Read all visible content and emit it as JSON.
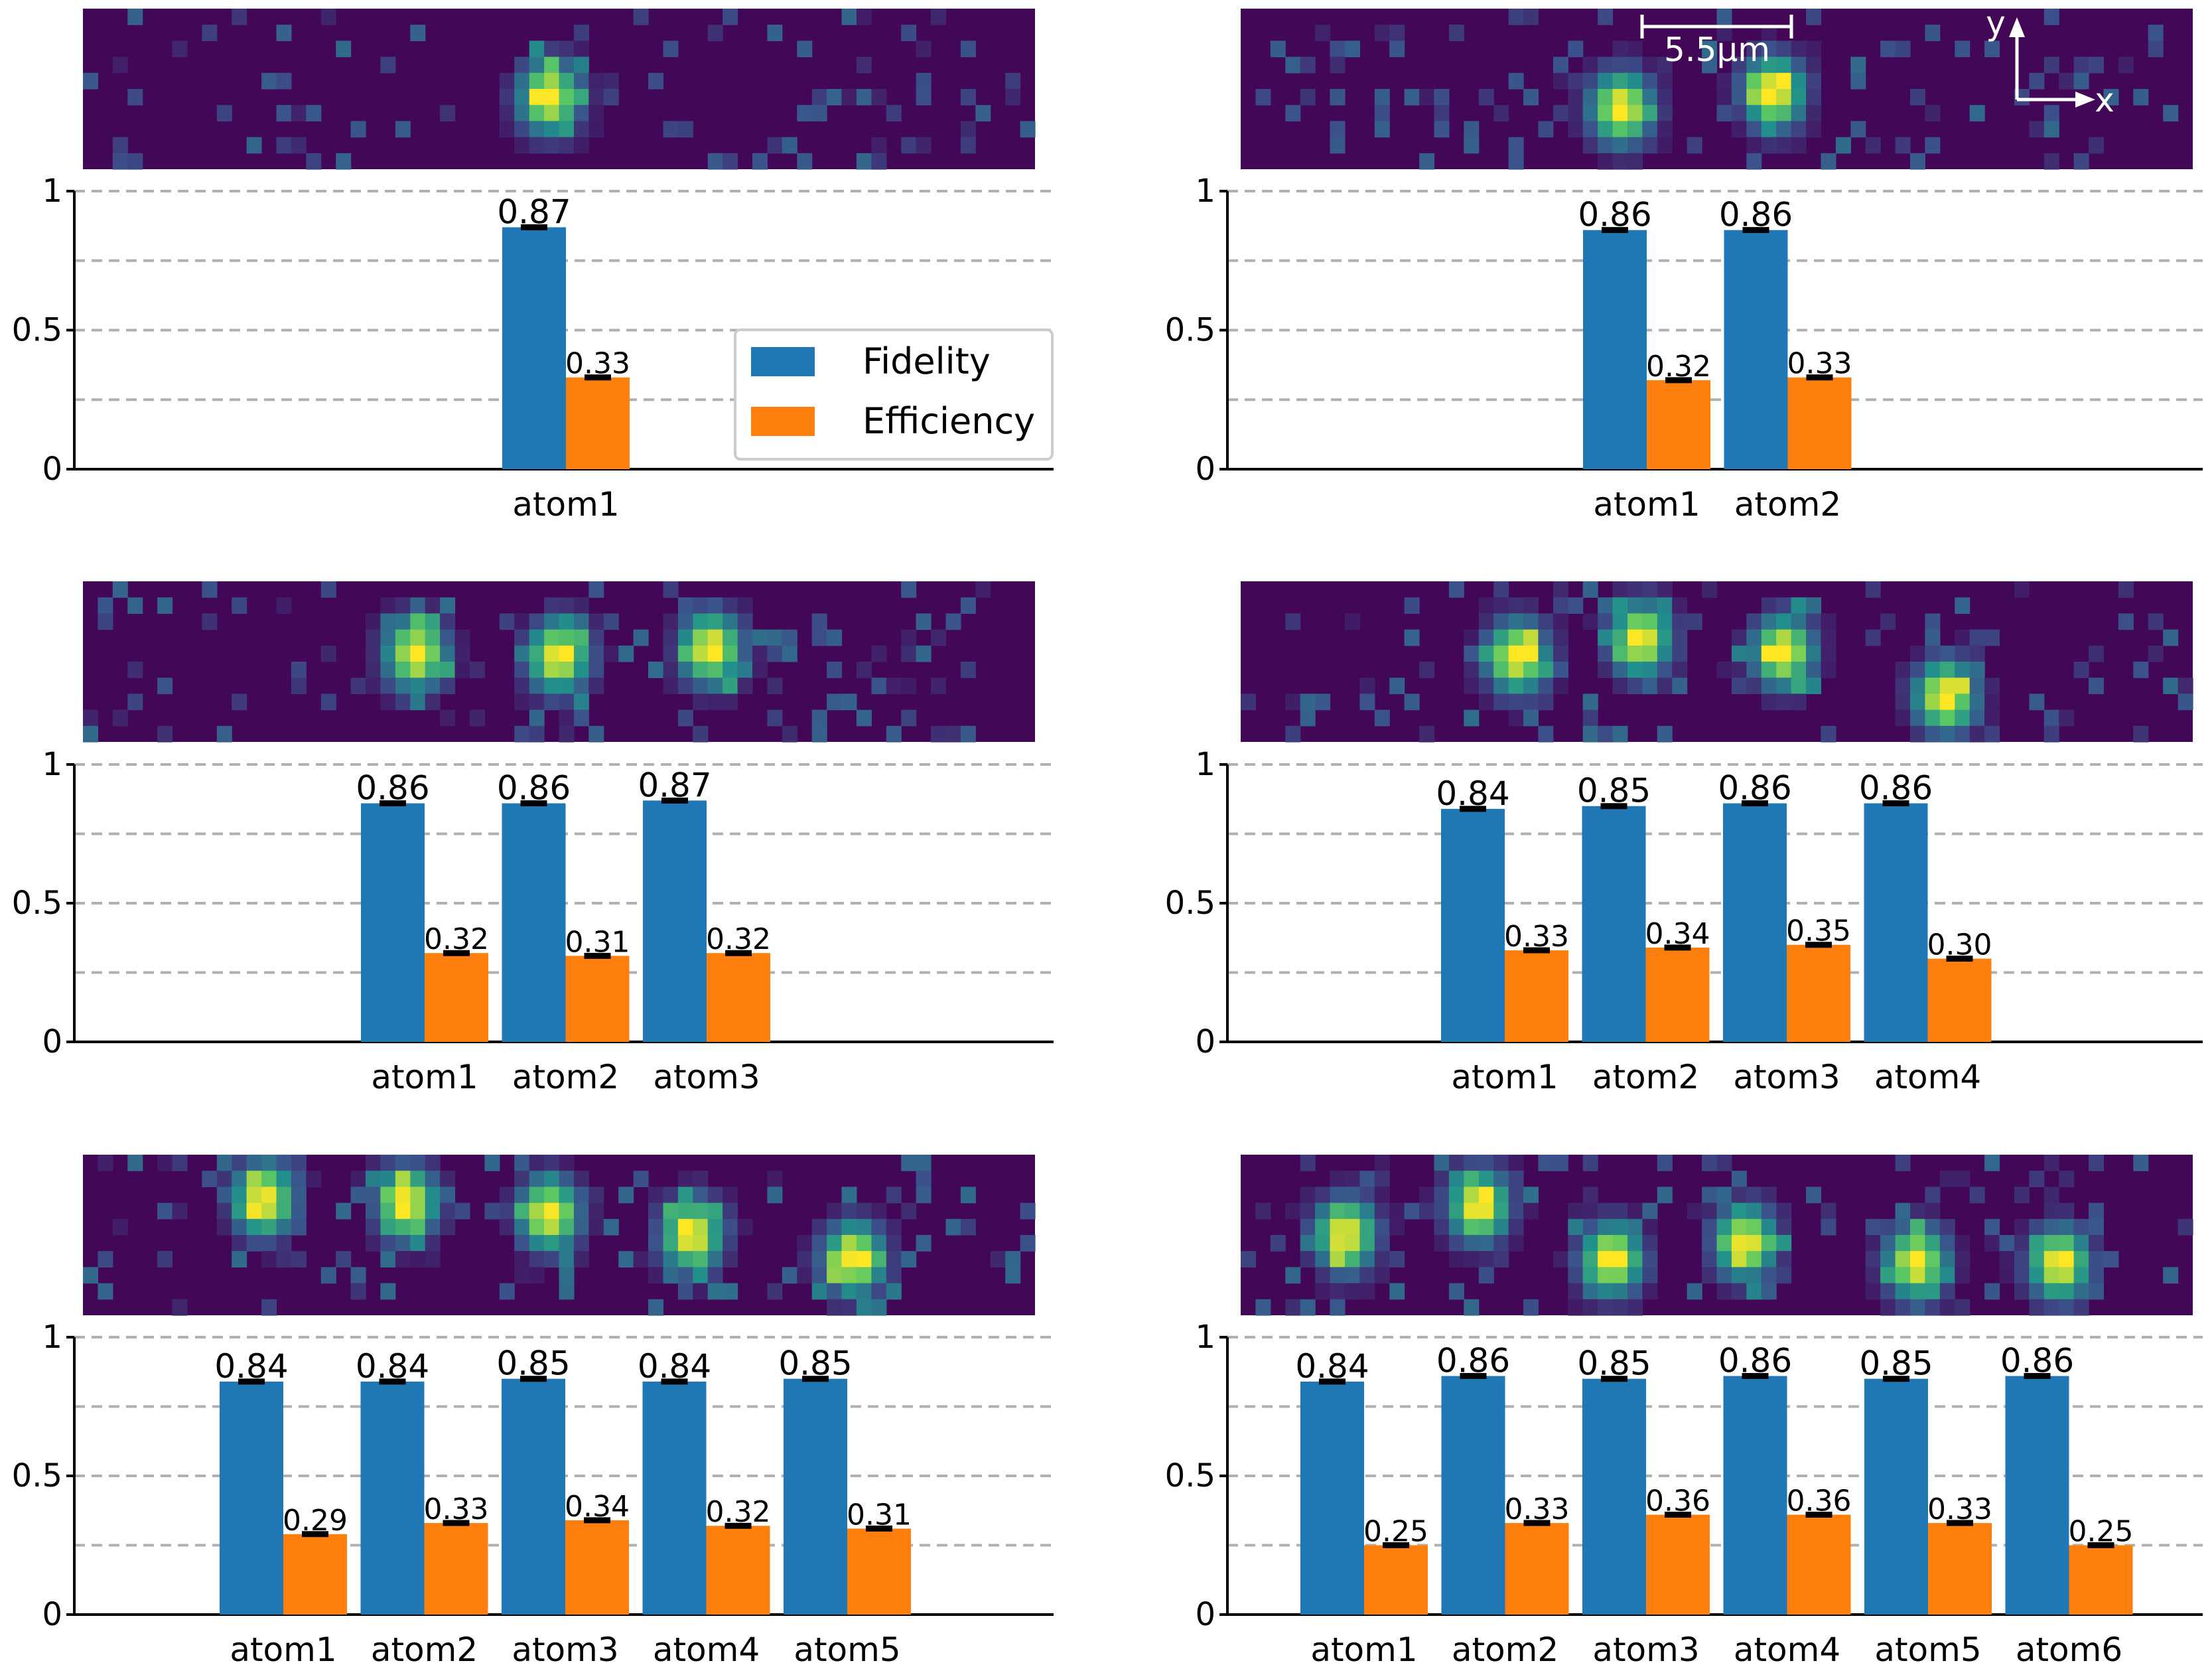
{
  "legend": {
    "fidelity_label": "Fidelity",
    "efficiency_label": "Efficiency",
    "fidelity_color": "#1f77b4",
    "efficiency_color": "#ff7f0e"
  },
  "scale_bar": {
    "label": "5.5μm"
  },
  "axes_labels": {
    "x": "x",
    "y": "y"
  },
  "colormap": "viridis",
  "chart_data": [
    {
      "type": "bar",
      "categories": [
        "atom1"
      ],
      "series": [
        {
          "name": "Fidelity",
          "values": [
            0.87
          ]
        },
        {
          "name": "Efficiency",
          "values": [
            0.33
          ]
        }
      ],
      "value_labels": {
        "Fidelity": [
          "0.87"
        ],
        "Efficiency": [
          "0.33"
        ]
      },
      "yticks": [
        "0",
        "0.5",
        "1"
      ],
      "ylim": [
        0,
        1
      ],
      "grid": "dashed at 0.25, 0.5, 0.75, 1",
      "legend_position": "center-right"
    },
    {
      "type": "bar",
      "categories": [
        "atom1",
        "atom2"
      ],
      "series": [
        {
          "name": "Fidelity",
          "values": [
            0.86,
            0.86
          ]
        },
        {
          "name": "Efficiency",
          "values": [
            0.32,
            0.33
          ]
        }
      ],
      "value_labels": {
        "Fidelity": [
          "0.86",
          "0.86"
        ],
        "Efficiency": [
          "0.32",
          "0.33"
        ]
      },
      "yticks": [
        "0",
        "0.5",
        "1"
      ],
      "ylim": [
        0,
        1
      ]
    },
    {
      "type": "bar",
      "categories": [
        "atom1",
        "atom2",
        "atom3"
      ],
      "series": [
        {
          "name": "Fidelity",
          "values": [
            0.86,
            0.86,
            0.87
          ]
        },
        {
          "name": "Efficiency",
          "values": [
            0.32,
            0.31,
            0.32
          ]
        }
      ],
      "value_labels": {
        "Fidelity": [
          "0.86",
          "0.86",
          "0.87"
        ],
        "Efficiency": [
          "0.32",
          "0.31",
          "0.32"
        ]
      },
      "yticks": [
        "0",
        "0.5",
        "1"
      ],
      "ylim": [
        0,
        1
      ]
    },
    {
      "type": "bar",
      "categories": [
        "atom1",
        "atom2",
        "atom3",
        "atom4"
      ],
      "series": [
        {
          "name": "Fidelity",
          "values": [
            0.84,
            0.85,
            0.86,
            0.86
          ]
        },
        {
          "name": "Efficiency",
          "values": [
            0.33,
            0.34,
            0.35,
            0.3
          ]
        }
      ],
      "value_labels": {
        "Fidelity": [
          "0.84",
          "0.85",
          "0.86",
          "0.86"
        ],
        "Efficiency": [
          "0.33",
          "0.34",
          "0.35",
          "0.30"
        ]
      },
      "yticks": [
        "0",
        "0.5",
        "1"
      ],
      "ylim": [
        0,
        1
      ]
    },
    {
      "type": "bar",
      "categories": [
        "atom1",
        "atom2",
        "atom3",
        "atom4",
        "atom5"
      ],
      "series": [
        {
          "name": "Fidelity",
          "values": [
            0.84,
            0.84,
            0.85,
            0.84,
            0.85
          ]
        },
        {
          "name": "Efficiency",
          "values": [
            0.29,
            0.33,
            0.34,
            0.32,
            0.31
          ]
        }
      ],
      "value_labels": {
        "Fidelity": [
          "0.84",
          "0.84",
          "0.85",
          "0.84",
          "0.85"
        ],
        "Efficiency": [
          "0.29",
          "0.33",
          "0.34",
          "0.32",
          "0.31"
        ]
      },
      "yticks": [
        "0",
        "0.5",
        "1"
      ],
      "ylim": [
        0,
        1
      ]
    },
    {
      "type": "bar",
      "categories": [
        "atom1",
        "atom2",
        "atom3",
        "atom4",
        "atom5",
        "atom6"
      ],
      "series": [
        {
          "name": "Fidelity",
          "values": [
            0.84,
            0.86,
            0.85,
            0.86,
            0.85,
            0.86
          ]
        },
        {
          "name": "Efficiency",
          "values": [
            0.25,
            0.33,
            0.36,
            0.36,
            0.33,
            0.25
          ]
        }
      ],
      "value_labels": {
        "Fidelity": [
          "0.84",
          "0.86",
          "0.85",
          "0.86",
          "0.85",
          "0.86"
        ],
        "Efficiency": [
          "0.25",
          "0.33",
          "0.36",
          "0.36",
          "0.33",
          "0.25"
        ]
      },
      "yticks": [
        "0",
        "0.5",
        "1"
      ],
      "ylim": [
        0,
        1
      ]
    }
  ]
}
